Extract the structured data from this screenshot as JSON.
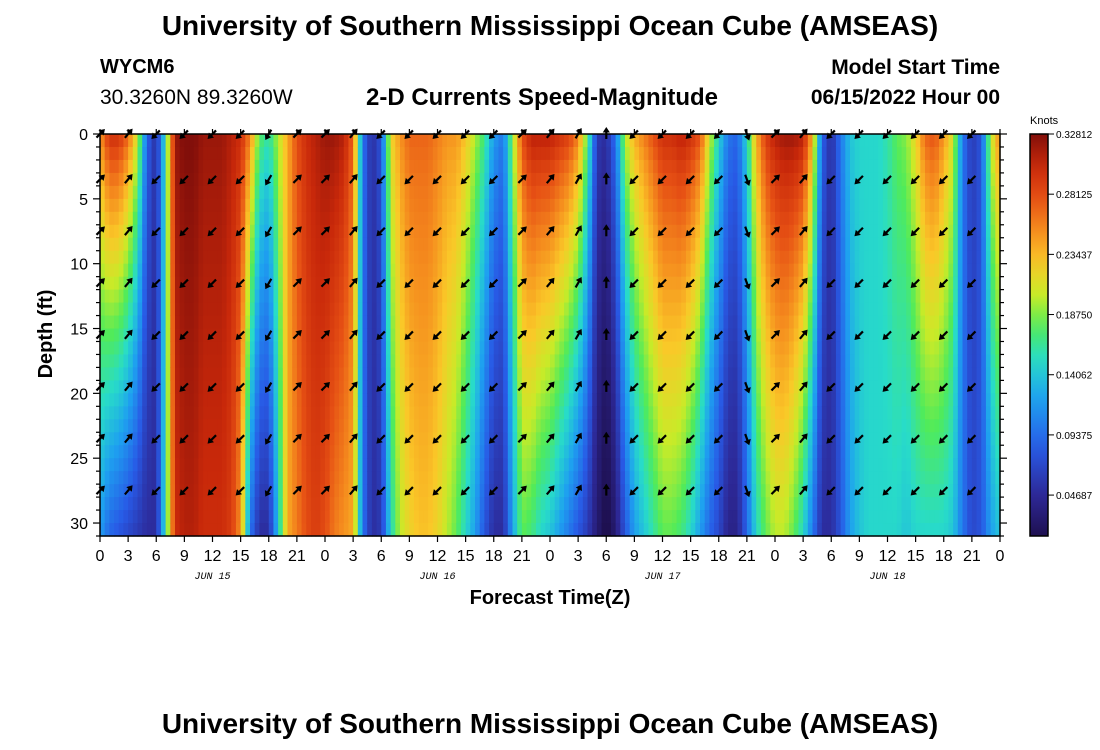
{
  "header": {
    "title": "University of Southern Mississippi Ocean Cube (AMSEAS)",
    "station": "WYCM6",
    "coords": "30.3260N  89.3260W",
    "subtitle": "2-D Currents Speed-Magnitude",
    "model_start_label": "Model Start Time",
    "model_start_value": "06/15/2022 Hour 00"
  },
  "footer": {
    "title": "University of Southern Mississippi Ocean Cube (AMSEAS)"
  },
  "chart_data": {
    "type": "heatmap",
    "xlabel": "Forecast Time(Z)",
    "ylabel": "Depth (ft)",
    "x_tick_labels": [
      "0",
      "3",
      "6",
      "9",
      "12",
      "15",
      "18",
      "21",
      "0",
      "3",
      "6",
      "9",
      "12",
      "15",
      "18",
      "21",
      "0",
      "3",
      "6",
      "9",
      "12",
      "15",
      "18",
      "21",
      "0",
      "3",
      "6",
      "9",
      "12",
      "15",
      "18",
      "21",
      "0"
    ],
    "date_labels": [
      {
        "label": "JUN 15",
        "hour": 12
      },
      {
        "label": "JUN 16",
        "hour": 36
      },
      {
        "label": "JUN 17",
        "hour": 60
      },
      {
        "label": "JUN 18",
        "hour": 84
      }
    ],
    "xlim_hours": [
      0,
      96
    ],
    "ylim_ft": [
      0,
      31
    ],
    "y_ticks": [
      0,
      5,
      10,
      15,
      20,
      25,
      30
    ],
    "colorbar": {
      "unit": "Knots",
      "min": 0.015,
      "max": 0.328125,
      "tick_values": [
        0.32812,
        0.28125,
        0.23437,
        0.1875,
        0.14062,
        0.09375,
        0.04687
      ],
      "tick_labels": [
        "0.32812",
        "0.28125",
        "0.23437",
        "0.18750",
        "0.14062",
        "0.09375",
        "0.04687"
      ]
    },
    "profile": {
      "hours": [
        0,
        1,
        2,
        3,
        4,
        5,
        6,
        7,
        8,
        9,
        10,
        11,
        12,
        13,
        14,
        15,
        16,
        17,
        18,
        19,
        20,
        21,
        22,
        23,
        24,
        25,
        26,
        27,
        28,
        29,
        30,
        31,
        32,
        33,
        34,
        35,
        36,
        37,
        38,
        39,
        40,
        41,
        42,
        43,
        44,
        45,
        46,
        47,
        48,
        49,
        50,
        51,
        52,
        53,
        54,
        55,
        56,
        57,
        58,
        59,
        60,
        61,
        62,
        63,
        64,
        65,
        66,
        67,
        68,
        69,
        70,
        71,
        72,
        73,
        74,
        75,
        76,
        77,
        78,
        79,
        80,
        81,
        82,
        83,
        84,
        85,
        86,
        87,
        88,
        89,
        90,
        91,
        92,
        93,
        94,
        95,
        96
      ],
      "surface_speed": [
        0.25,
        0.3,
        0.3,
        0.27,
        0.21,
        0.09,
        0.05,
        0.16,
        0.32,
        0.33,
        0.33,
        0.32,
        0.32,
        0.32,
        0.31,
        0.3,
        0.26,
        0.18,
        0.16,
        0.2,
        0.24,
        0.28,
        0.3,
        0.31,
        0.32,
        0.32,
        0.31,
        0.27,
        0.1,
        0.05,
        0.08,
        0.22,
        0.25,
        0.27,
        0.27,
        0.27,
        0.26,
        0.25,
        0.25,
        0.23,
        0.2,
        0.17,
        0.12,
        0.1,
        0.19,
        0.28,
        0.31,
        0.31,
        0.31,
        0.3,
        0.29,
        0.26,
        0.18,
        0.06,
        0.05,
        0.1,
        0.2,
        0.24,
        0.26,
        0.28,
        0.3,
        0.3,
        0.31,
        0.3,
        0.28,
        0.21,
        0.15,
        0.1,
        0.09,
        0.15,
        0.24,
        0.29,
        0.31,
        0.32,
        0.32,
        0.31,
        0.24,
        0.09,
        0.05,
        0.1,
        0.14,
        0.15,
        0.15,
        0.15,
        0.16,
        0.18,
        0.19,
        0.22,
        0.27,
        0.28,
        0.25,
        0.21,
        0.1,
        0.06,
        0.08,
        0.2,
        0.26
      ],
      "bottom_speed": [
        0.12,
        0.09,
        0.08,
        0.07,
        0.06,
        0.05,
        0.05,
        0.16,
        0.3,
        0.31,
        0.31,
        0.3,
        0.3,
        0.3,
        0.29,
        0.25,
        0.1,
        0.05,
        0.05,
        0.14,
        0.24,
        0.26,
        0.28,
        0.29,
        0.28,
        0.26,
        0.25,
        0.24,
        0.1,
        0.05,
        0.06,
        0.15,
        0.2,
        0.22,
        0.23,
        0.23,
        0.22,
        0.2,
        0.18,
        0.15,
        0.12,
        0.08,
        0.05,
        0.05,
        0.12,
        0.18,
        0.17,
        0.15,
        0.14,
        0.12,
        0.1,
        0.08,
        0.06,
        0.03,
        0.01,
        0.03,
        0.08,
        0.12,
        0.14,
        0.16,
        0.18,
        0.18,
        0.17,
        0.15,
        0.12,
        0.09,
        0.07,
        0.04,
        0.04,
        0.09,
        0.15,
        0.18,
        0.2,
        0.2,
        0.18,
        0.15,
        0.1,
        0.05,
        0.05,
        0.08,
        0.12,
        0.14,
        0.15,
        0.15,
        0.15,
        0.15,
        0.14,
        0.15,
        0.15,
        0.15,
        0.15,
        0.14,
        0.1,
        0.07,
        0.08,
        0.12,
        0.14
      ]
    },
    "arrow_directions_deg": [
      {
        "hour": 0,
        "bearing": 45
      },
      {
        "hour": 3,
        "bearing": 40
      },
      {
        "hour": 6,
        "bearing": 225
      },
      {
        "hour": 9,
        "bearing": 225
      },
      {
        "hour": 12,
        "bearing": 225
      },
      {
        "hour": 15,
        "bearing": 225
      },
      {
        "hour": 18,
        "bearing": 210
      },
      {
        "hour": 21,
        "bearing": 45
      },
      {
        "hour": 24,
        "bearing": 45
      },
      {
        "hour": 27,
        "bearing": 40
      },
      {
        "hour": 30,
        "bearing": 225
      },
      {
        "hour": 33,
        "bearing": 225
      },
      {
        "hour": 36,
        "bearing": 225
      },
      {
        "hour": 39,
        "bearing": 225
      },
      {
        "hour": 42,
        "bearing": 225
      },
      {
        "hour": 45,
        "bearing": 45
      },
      {
        "hour": 48,
        "bearing": 40
      },
      {
        "hour": 51,
        "bearing": 30
      },
      {
        "hour": 54,
        "bearing": 0
      },
      {
        "hour": 57,
        "bearing": 225
      },
      {
        "hour": 60,
        "bearing": 225
      },
      {
        "hour": 63,
        "bearing": 225
      },
      {
        "hour": 66,
        "bearing": 225
      },
      {
        "hour": 69,
        "bearing": 160
      },
      {
        "hour": 72,
        "bearing": 45
      },
      {
        "hour": 75,
        "bearing": 40
      },
      {
        "hour": 78,
        "bearing": 225
      },
      {
        "hour": 81,
        "bearing": 225
      },
      {
        "hour": 84,
        "bearing": 225
      },
      {
        "hour": 87,
        "bearing": 225
      },
      {
        "hour": 90,
        "bearing": 225
      },
      {
        "hour": 93,
        "bearing": 225
      }
    ],
    "arrow_depths_ft": [
      0,
      3.5,
      7.5,
      11.5,
      15.5,
      19.5,
      23.5,
      27.5
    ]
  }
}
